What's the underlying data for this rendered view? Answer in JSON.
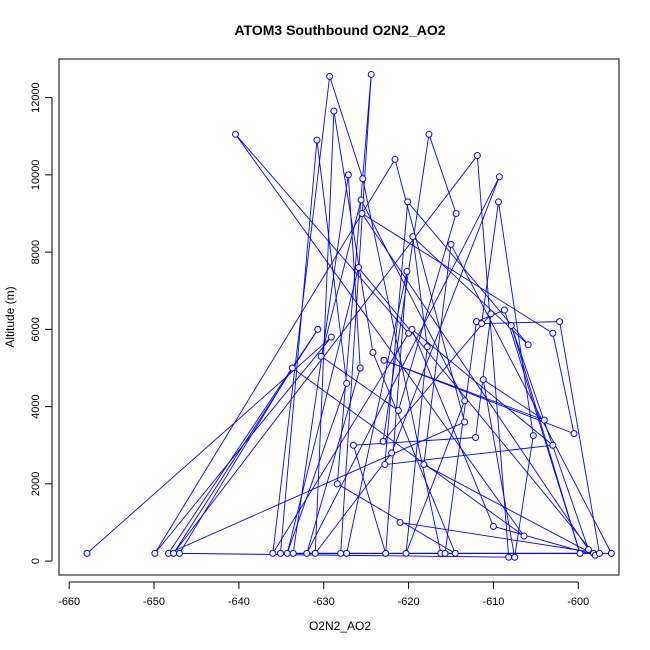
{
  "chart_data": {
    "type": "line",
    "title": "ATOM3 Southbound O2N2_AO2",
    "xlabel": "O2N2_AO2",
    "ylabel": "Altitude (m)",
    "xlim": [
      -661.2,
      -595.2
    ],
    "ylim": [
      -360,
      13000
    ],
    "x_ticks": [
      -660,
      -650,
      -640,
      -630,
      -620,
      -610,
      -600
    ],
    "y_ticks": [
      0,
      2000,
      4000,
      6000,
      8000,
      10000,
      12000
    ],
    "x_tick_labels": [
      "-660",
      "-650",
      "-640",
      "-630",
      "-620",
      "-610",
      "-600"
    ],
    "y_tick_labels": [
      "0",
      "2000",
      "4000",
      "6000",
      "8000",
      "10000",
      "12000"
    ],
    "grid": false,
    "legend": "none",
    "colors": {
      "series": "#0000ff",
      "axis": "#000000"
    },
    "series": [
      {
        "marker": "open-circle",
        "line": true,
        "points": [
          [
            -657.9,
            200
          ],
          [
            -629.1,
            5800
          ],
          [
            -649.9,
            200
          ],
          [
            -621.6,
            10400
          ],
          [
            -613.4,
            3600
          ],
          [
            -648.3,
            200
          ],
          [
            -630.7,
            6000
          ],
          [
            -647.7,
            200
          ],
          [
            -611.9,
            10500
          ],
          [
            -608.2,
            100
          ],
          [
            -647.0,
            200
          ],
          [
            -633.7,
            5000
          ],
          [
            -606.4,
            650
          ],
          [
            -640.4,
            11050
          ],
          [
            -620.0,
            5900
          ],
          [
            -636.0,
            200
          ],
          [
            -629.3,
            12550
          ],
          [
            -625.4,
            9900
          ],
          [
            -616.2,
            200
          ],
          [
            -635.1,
            200
          ],
          [
            -630.8,
            10900
          ],
          [
            -627.3,
            4600
          ],
          [
            -634.3,
            200
          ],
          [
            -625.9,
            7600
          ],
          [
            -598.2,
            200
          ],
          [
            -633.6,
            200
          ],
          [
            -627.1,
            10000
          ],
          [
            -625.7,
            5000
          ],
          [
            -632.0,
            200
          ],
          [
            -609.3,
            9950
          ],
          [
            -622.0,
            2800
          ],
          [
            -631.0,
            200
          ],
          [
            -628.8,
            11650
          ],
          [
            -624.2,
            5400
          ],
          [
            -614.5,
            200
          ],
          [
            -628.4,
            2000
          ],
          [
            -624.4,
            12600
          ],
          [
            -628.0,
            200
          ],
          [
            -627.3,
            200
          ],
          [
            -620.2,
            7500
          ],
          [
            -622.7,
            200
          ],
          [
            -626.5,
            3000
          ],
          [
            -612.1,
            3200
          ],
          [
            -610.3,
            6400
          ],
          [
            -623.0,
            3100
          ],
          [
            -617.6,
            11050
          ],
          [
            -614.4,
            9000
          ],
          [
            -621.2,
            3900
          ],
          [
            -630.3,
            5300
          ],
          [
            -625.6,
            9350
          ],
          [
            -613.4,
            4150
          ],
          [
            -620.3,
            200
          ],
          [
            -617.8,
            5550
          ],
          [
            -619.5,
            8400
          ],
          [
            -605.9,
            5600
          ],
          [
            -620.1,
            9300
          ],
          [
            -622.8,
            2500
          ],
          [
            -603.0,
            3000
          ],
          [
            -619.6,
            6000
          ],
          [
            -610.0,
            900
          ],
          [
            -598.0,
            150
          ],
          [
            -618.2,
            2500
          ],
          [
            -615.0,
            8200
          ],
          [
            -596.1,
            200
          ],
          [
            -615.7,
            200
          ],
          [
            -612.0,
            6200
          ],
          [
            -608.7,
            6500
          ],
          [
            -599.8,
            200
          ],
          [
            -607.9,
            6100
          ],
          [
            -598.8,
            300
          ],
          [
            -625.5,
            9000
          ],
          [
            -603.0,
            5900
          ],
          [
            -600.5,
            3300
          ],
          [
            -622.9,
            5200
          ],
          [
            -604.0,
            3650
          ],
          [
            -611.2,
            4700
          ],
          [
            -607.5,
            100
          ],
          [
            -605.3,
            3250
          ],
          [
            -609.4,
            9300
          ],
          [
            -611.4,
            6150
          ],
          [
            -602.2,
            6200
          ],
          [
            -597.5,
            200
          ],
          [
            -621.0,
            1000
          ]
        ]
      }
    ]
  }
}
